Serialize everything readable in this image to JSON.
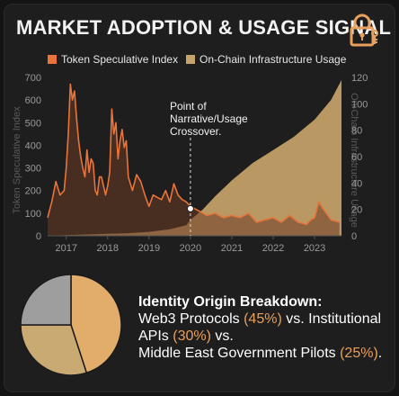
{
  "title": "MARKET ADOPTION & USAGE SIGNAL",
  "icons": {
    "header_icon": "padlock-key-icon"
  },
  "colors": {
    "background": "#1e1e1e",
    "token_line": "#e8743a",
    "token_fill": "#6b3a24",
    "infra_fill": "#c7a36a",
    "axis_text": "#9a9a9a",
    "pie_web3": "#e2ad6b",
    "pie_institutional": "#c9aa72",
    "pie_government": "#9e9e9e",
    "highlight": "#e8a05c"
  },
  "chart_data": {
    "type": "area",
    "legend_position": "top",
    "grid": false,
    "x_ticks": [
      "2017",
      "2018",
      "2019",
      "2020",
      "2021",
      "2022",
      "2023"
    ],
    "xlim": [
      2016.55,
      2023.65
    ],
    "left_axis": {
      "label": "Token Speculative Index",
      "ylim": [
        0,
        700
      ],
      "ticks": [
        "0",
        "100",
        "200",
        "300",
        "400",
        "500",
        "600",
        "700"
      ]
    },
    "right_axis": {
      "label": "On-Chain Infrastructure Usage",
      "ylim": [
        0,
        120
      ],
      "ticks": [
        "0",
        "20",
        "40",
        "60",
        "80",
        "100",
        "120"
      ]
    },
    "series": [
      {
        "name": "Token Speculative Index",
        "axis": "left",
        "style": "line-with-fill",
        "x": [
          2016.55,
          2016.65,
          2016.75,
          2016.85,
          2016.95,
          2017.0,
          2017.05,
          2017.1,
          2017.15,
          2017.2,
          2017.25,
          2017.3,
          2017.35,
          2017.4,
          2017.45,
          2017.5,
          2017.55,
          2017.6,
          2017.65,
          2017.7,
          2017.75,
          2017.8,
          2017.85,
          2017.9,
          2017.95,
          2018.0,
          2018.05,
          2018.1,
          2018.15,
          2018.2,
          2018.25,
          2018.3,
          2018.35,
          2018.4,
          2018.45,
          2018.5,
          2018.6,
          2018.7,
          2018.8,
          2018.9,
          2019.0,
          2019.1,
          2019.2,
          2019.3,
          2019.4,
          2019.5,
          2019.6,
          2019.7,
          2019.8,
          2019.9,
          2020.0,
          2020.2,
          2020.4,
          2020.6,
          2020.8,
          2021.0,
          2021.2,
          2021.4,
          2021.6,
          2021.8,
          2022.0,
          2022.2,
          2022.4,
          2022.6,
          2022.8,
          2022.9,
          2023.0,
          2023.1,
          2023.2,
          2023.4,
          2023.6
        ],
        "values": [
          80,
          150,
          240,
          180,
          200,
          300,
          450,
          670,
          600,
          640,
          520,
          420,
          350,
          300,
          260,
          380,
          280,
          340,
          320,
          200,
          180,
          260,
          260,
          220,
          180,
          220,
          280,
          560,
          450,
          500,
          340,
          420,
          470,
          390,
          420,
          260,
          200,
          270,
          240,
          180,
          130,
          180,
          170,
          160,
          200,
          150,
          230,
          180,
          160,
          150,
          130,
          110,
          90,
          100,
          80,
          90,
          80,
          100,
          60,
          70,
          80,
          60,
          90,
          60,
          50,
          70,
          80,
          150,
          120,
          70,
          60
        ]
      },
      {
        "name": "On-Chain Infrastructure Usage",
        "axis": "right",
        "style": "area",
        "x": [
          2016.55,
          2017.0,
          2017.5,
          2018.0,
          2018.5,
          2019.0,
          2019.5,
          2019.9,
          2020.0,
          2020.3,
          2020.6,
          2021.0,
          2021.5,
          2022.0,
          2022.5,
          2023.0,
          2023.4,
          2023.65
        ],
        "values": [
          0,
          0.5,
          1,
          1.5,
          2,
          3,
          5,
          8,
          12,
          20,
          30,
          42,
          55,
          65,
          75,
          88,
          103,
          118
        ]
      }
    ],
    "annotations": [
      {
        "text": "Point of\nNarrative/Usage\nCrossover.",
        "x": 2020.0,
        "y_left": 120
      }
    ]
  },
  "pie": {
    "type": "pie",
    "slices": [
      {
        "label": "Web3 Protocols",
        "value": 45,
        "color_key": "pie_web3"
      },
      {
        "label": "Institutional APIs",
        "value": 30,
        "color_key": "pie_institutional"
      },
      {
        "label": "Middle East Government Pilots",
        "value": 25,
        "color_key": "pie_government"
      }
    ]
  },
  "identity": {
    "heading": "Identity Origin Breakdown:",
    "line1_a": "Web3 Protocols ",
    "line1_pct": "(45%)",
    "line1_b": " vs. Institutional",
    "line2_a": "APIs ",
    "line2_pct": "(30%)",
    "line2_b": " vs.",
    "line3_a": "Middle East Government Pilots ",
    "line3_pct": "(25%)",
    "line3_b": "."
  }
}
